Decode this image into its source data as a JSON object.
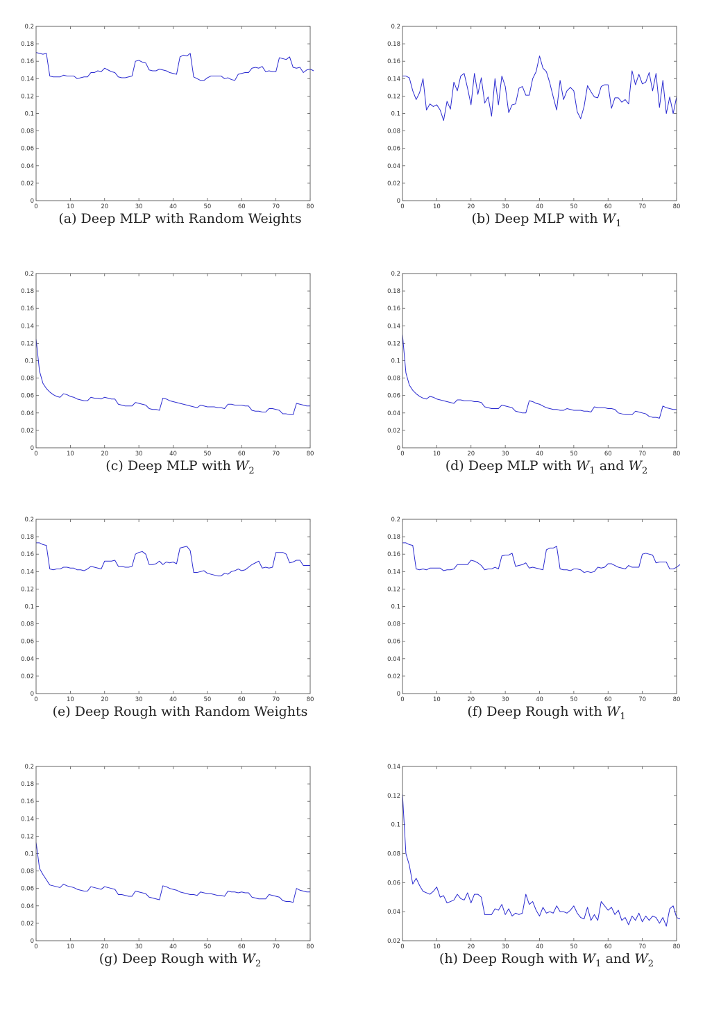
{
  "chart_data": [
    {
      "type": "line",
      "caption": {
        "tag": "(a)",
        "text": "Deep MLP with Random Weights",
        "sym": "",
        "sub": "",
        "text2": "",
        "sym2": "",
        "sub2": ""
      },
      "xlim": [
        0,
        80
      ],
      "ylim": [
        0,
        0.2
      ],
      "xticks": [
        0,
        10,
        20,
        30,
        40,
        50,
        60,
        70,
        80
      ],
      "yticks": [
        0,
        0.02,
        0.04,
        0.06,
        0.08,
        0.1,
        0.12,
        0.14,
        0.16,
        0.18,
        0.2
      ],
      "line_color": "#2b2bd0",
      "y": [
        0.17,
        0.169,
        0.168,
        0.169,
        0.143,
        0.142,
        0.142,
        0.142,
        0.144,
        0.143,
        0.143,
        0.143,
        0.14,
        0.141,
        0.142,
        0.142,
        0.147,
        0.147,
        0.149,
        0.148,
        0.152,
        0.15,
        0.148,
        0.147,
        0.142,
        0.141,
        0.141,
        0.142,
        0.143,
        0.16,
        0.161,
        0.159,
        0.158,
        0.15,
        0.149,
        0.149,
        0.151,
        0.15,
        0.149,
        0.147,
        0.146,
        0.145,
        0.165,
        0.167,
        0.166,
        0.169,
        0.142,
        0.14,
        0.138,
        0.138,
        0.141,
        0.143,
        0.143,
        0.143,
        0.143,
        0.14,
        0.141,
        0.139,
        0.138,
        0.145,
        0.146,
        0.147,
        0.147,
        0.152,
        0.153,
        0.152,
        0.154,
        0.148,
        0.149,
        0.148,
        0.148,
        0.164,
        0.163,
        0.162,
        0.165,
        0.153,
        0.152,
        0.153,
        0.147,
        0.15,
        0.151,
        0.149
      ]
    },
    {
      "type": "line",
      "caption": {
        "tag": "(b)",
        "text": "Deep MLP with",
        "sym": "W",
        "sub": "1",
        "text2": "",
        "sym2": "",
        "sub2": ""
      },
      "xlim": [
        0,
        80
      ],
      "ylim": [
        0,
        0.2
      ],
      "xticks": [
        0,
        10,
        20,
        30,
        40,
        50,
        60,
        70,
        80
      ],
      "yticks": [
        0,
        0.02,
        0.04,
        0.06,
        0.08,
        0.1,
        0.12,
        0.14,
        0.16,
        0.18,
        0.2
      ],
      "line_color": "#2b2bd0",
      "y": [
        0.143,
        0.143,
        0.141,
        0.126,
        0.116,
        0.124,
        0.14,
        0.104,
        0.111,
        0.108,
        0.11,
        0.104,
        0.092,
        0.114,
        0.105,
        0.136,
        0.126,
        0.143,
        0.146,
        0.129,
        0.11,
        0.146,
        0.122,
        0.141,
        0.112,
        0.119,
        0.097,
        0.14,
        0.11,
        0.143,
        0.131,
        0.101,
        0.11,
        0.111,
        0.129,
        0.131,
        0.121,
        0.121,
        0.14,
        0.148,
        0.166,
        0.152,
        0.148,
        0.135,
        0.119,
        0.104,
        0.138,
        0.116,
        0.126,
        0.13,
        0.126,
        0.102,
        0.094,
        0.108,
        0.132,
        0.125,
        0.119,
        0.118,
        0.131,
        0.133,
        0.133,
        0.106,
        0.118,
        0.118,
        0.113,
        0.116,
        0.111,
        0.149,
        0.133,
        0.145,
        0.134,
        0.136,
        0.147,
        0.126,
        0.146,
        0.107,
        0.138,
        0.1,
        0.119,
        0.1,
        0.119
      ]
    },
    {
      "type": "line",
      "caption": {
        "tag": "(c)",
        "text": "Deep MLP with",
        "sym": "W",
        "sub": "2",
        "text2": "",
        "sym2": "",
        "sub2": ""
      },
      "xlim": [
        0,
        80
      ],
      "ylim": [
        0,
        0.2
      ],
      "xticks": [
        0,
        10,
        20,
        30,
        40,
        50,
        60,
        70,
        80
      ],
      "yticks": [
        0,
        0.02,
        0.04,
        0.06,
        0.08,
        0.1,
        0.12,
        0.14,
        0.16,
        0.18,
        0.2
      ],
      "line_color": "#2b2bd0",
      "y": [
        0.125,
        0.088,
        0.074,
        0.068,
        0.064,
        0.061,
        0.059,
        0.058,
        0.062,
        0.061,
        0.059,
        0.058,
        0.056,
        0.055,
        0.054,
        0.054,
        0.058,
        0.057,
        0.057,
        0.056,
        0.058,
        0.057,
        0.056,
        0.056,
        0.05,
        0.049,
        0.048,
        0.048,
        0.048,
        0.052,
        0.051,
        0.05,
        0.049,
        0.045,
        0.044,
        0.044,
        0.043,
        0.057,
        0.056,
        0.054,
        0.053,
        0.052,
        0.051,
        0.05,
        0.049,
        0.048,
        0.047,
        0.046,
        0.049,
        0.048,
        0.047,
        0.047,
        0.047,
        0.046,
        0.046,
        0.045,
        0.05,
        0.05,
        0.049,
        0.049,
        0.049,
        0.048,
        0.048,
        0.043,
        0.042,
        0.042,
        0.041,
        0.041,
        0.045,
        0.045,
        0.044,
        0.043,
        0.039,
        0.039,
        0.038,
        0.038,
        0.051,
        0.05,
        0.049,
        0.048,
        0.048
      ]
    },
    {
      "type": "line",
      "caption": {
        "tag": "(d)",
        "text": "Deep MLP with",
        "sym": "W",
        "sub": "1",
        "text2": "and",
        "sym2": "W",
        "sub2": "2"
      },
      "xlim": [
        0,
        80
      ],
      "ylim": [
        0,
        0.2
      ],
      "xticks": [
        0,
        10,
        20,
        30,
        40,
        50,
        60,
        70,
        80
      ],
      "yticks": [
        0,
        0.02,
        0.04,
        0.06,
        0.08,
        0.1,
        0.12,
        0.14,
        0.16,
        0.18,
        0.2
      ],
      "line_color": "#2b2bd0",
      "y": [
        0.13,
        0.086,
        0.072,
        0.066,
        0.062,
        0.059,
        0.057,
        0.056,
        0.059,
        0.058,
        0.056,
        0.055,
        0.054,
        0.053,
        0.052,
        0.051,
        0.055,
        0.055,
        0.054,
        0.054,
        0.054,
        0.053,
        0.053,
        0.052,
        0.047,
        0.046,
        0.045,
        0.045,
        0.045,
        0.049,
        0.048,
        0.047,
        0.046,
        0.042,
        0.041,
        0.04,
        0.04,
        0.054,
        0.053,
        0.051,
        0.05,
        0.048,
        0.046,
        0.045,
        0.044,
        0.044,
        0.043,
        0.043,
        0.045,
        0.044,
        0.043,
        0.043,
        0.043,
        0.042,
        0.042,
        0.041,
        0.047,
        0.046,
        0.046,
        0.046,
        0.045,
        0.045,
        0.044,
        0.04,
        0.039,
        0.038,
        0.038,
        0.038,
        0.042,
        0.041,
        0.04,
        0.039,
        0.036,
        0.035,
        0.035,
        0.034,
        0.048,
        0.046,
        0.045,
        0.044,
        0.044
      ]
    },
    {
      "type": "line",
      "caption": {
        "tag": "(e)",
        "text": "Deep Rough with Random Weights",
        "sym": "",
        "sub": "",
        "text2": "",
        "sym2": "",
        "sub2": ""
      },
      "xlim": [
        0,
        80
      ],
      "ylim": [
        0,
        0.2
      ],
      "xticks": [
        0,
        10,
        20,
        30,
        40,
        50,
        60,
        70,
        80
      ],
      "yticks": [
        0,
        0.02,
        0.04,
        0.06,
        0.08,
        0.1,
        0.12,
        0.14,
        0.16,
        0.18,
        0.2
      ],
      "line_color": "#2b2bd0",
      "y": [
        0.173,
        0.173,
        0.171,
        0.17,
        0.143,
        0.142,
        0.143,
        0.143,
        0.145,
        0.145,
        0.144,
        0.144,
        0.142,
        0.142,
        0.141,
        0.143,
        0.146,
        0.145,
        0.144,
        0.143,
        0.152,
        0.152,
        0.152,
        0.153,
        0.146,
        0.146,
        0.145,
        0.145,
        0.146,
        0.16,
        0.162,
        0.163,
        0.16,
        0.148,
        0.148,
        0.149,
        0.152,
        0.148,
        0.151,
        0.15,
        0.151,
        0.149,
        0.167,
        0.168,
        0.169,
        0.164,
        0.139,
        0.139,
        0.14,
        0.141,
        0.138,
        0.137,
        0.136,
        0.135,
        0.135,
        0.138,
        0.137,
        0.14,
        0.141,
        0.143,
        0.141,
        0.142,
        0.145,
        0.148,
        0.15,
        0.152,
        0.144,
        0.145,
        0.144,
        0.145,
        0.162,
        0.162,
        0.162,
        0.16,
        0.15,
        0.151,
        0.153,
        0.153,
        0.147,
        0.147,
        0.147
      ]
    },
    {
      "type": "line",
      "caption": {
        "tag": "(f)",
        "text": "Deep Rough with",
        "sym": "W",
        "sub": "1",
        "text2": "",
        "sym2": "",
        "sub2": ""
      },
      "xlim": [
        0,
        80
      ],
      "ylim": [
        0,
        0.2
      ],
      "xticks": [
        0,
        10,
        20,
        30,
        40,
        50,
        60,
        70,
        80
      ],
      "yticks": [
        0,
        0.02,
        0.04,
        0.06,
        0.08,
        0.1,
        0.12,
        0.14,
        0.16,
        0.18,
        0.2
      ],
      "line_color": "#2b2bd0",
      "y": [
        0.173,
        0.173,
        0.171,
        0.17,
        0.143,
        0.142,
        0.143,
        0.142,
        0.144,
        0.144,
        0.144,
        0.144,
        0.141,
        0.142,
        0.142,
        0.143,
        0.148,
        0.148,
        0.148,
        0.148,
        0.153,
        0.152,
        0.15,
        0.147,
        0.142,
        0.143,
        0.143,
        0.145,
        0.143,
        0.158,
        0.159,
        0.159,
        0.161,
        0.146,
        0.147,
        0.148,
        0.15,
        0.144,
        0.145,
        0.144,
        0.143,
        0.142,
        0.165,
        0.167,
        0.167,
        0.169,
        0.143,
        0.142,
        0.142,
        0.141,
        0.143,
        0.143,
        0.142,
        0.139,
        0.14,
        0.139,
        0.14,
        0.145,
        0.144,
        0.145,
        0.149,
        0.149,
        0.147,
        0.145,
        0.144,
        0.143,
        0.147,
        0.145,
        0.145,
        0.145,
        0.16,
        0.161,
        0.16,
        0.159,
        0.15,
        0.151,
        0.151,
        0.151,
        0.143,
        0.143,
        0.145,
        0.148
      ]
    },
    {
      "type": "line",
      "caption": {
        "tag": "(g)",
        "text": "Deep Rough with",
        "sym": "W",
        "sub": "2",
        "text2": "",
        "sym2": "",
        "sub2": ""
      },
      "xlim": [
        0,
        80
      ],
      "ylim": [
        0,
        0.2
      ],
      "xticks": [
        0,
        10,
        20,
        30,
        40,
        50,
        60,
        70,
        80
      ],
      "yticks": [
        0,
        0.02,
        0.04,
        0.06,
        0.08,
        0.1,
        0.12,
        0.14,
        0.16,
        0.18,
        0.2
      ],
      "line_color": "#2b2bd0",
      "y": [
        0.113,
        0.083,
        0.076,
        0.07,
        0.064,
        0.063,
        0.062,
        0.061,
        0.065,
        0.063,
        0.062,
        0.061,
        0.059,
        0.058,
        0.057,
        0.057,
        0.062,
        0.061,
        0.06,
        0.059,
        0.062,
        0.061,
        0.06,
        0.059,
        0.053,
        0.053,
        0.052,
        0.051,
        0.051,
        0.057,
        0.056,
        0.055,
        0.054,
        0.05,
        0.049,
        0.048,
        0.047,
        0.063,
        0.062,
        0.06,
        0.059,
        0.058,
        0.056,
        0.055,
        0.054,
        0.053,
        0.053,
        0.052,
        0.056,
        0.055,
        0.054,
        0.054,
        0.053,
        0.052,
        0.052,
        0.051,
        0.057,
        0.056,
        0.056,
        0.055,
        0.056,
        0.055,
        0.055,
        0.05,
        0.049,
        0.048,
        0.048,
        0.048,
        0.053,
        0.052,
        0.051,
        0.05,
        0.046,
        0.045,
        0.045,
        0.044,
        0.06,
        0.058,
        0.057,
        0.056,
        0.056
      ]
    },
    {
      "type": "line",
      "caption": {
        "tag": "(h)",
        "text": "Deep Rough with",
        "sym": "W",
        "sub": "1",
        "text2": "and",
        "sym2": "W",
        "sub2": "2"
      },
      "xlim": [
        0,
        80
      ],
      "ylim": [
        0.02,
        0.14
      ],
      "xticks": [
        0,
        10,
        20,
        30,
        40,
        50,
        60,
        70,
        80
      ],
      "yticks": [
        0.02,
        0.04,
        0.06,
        0.08,
        0.1,
        0.12,
        0.14
      ],
      "line_color": "#2b2bd0",
      "y": [
        0.121,
        0.08,
        0.072,
        0.059,
        0.063,
        0.058,
        0.054,
        0.053,
        0.052,
        0.054,
        0.057,
        0.05,
        0.051,
        0.046,
        0.047,
        0.048,
        0.052,
        0.049,
        0.048,
        0.053,
        0.046,
        0.052,
        0.052,
        0.05,
        0.038,
        0.038,
        0.038,
        0.042,
        0.041,
        0.045,
        0.038,
        0.042,
        0.037,
        0.039,
        0.038,
        0.039,
        0.052,
        0.045,
        0.047,
        0.041,
        0.037,
        0.043,
        0.039,
        0.04,
        0.039,
        0.044,
        0.04,
        0.04,
        0.039,
        0.041,
        0.044,
        0.039,
        0.036,
        0.035,
        0.043,
        0.034,
        0.038,
        0.034,
        0.047,
        0.044,
        0.041,
        0.043,
        0.038,
        0.041,
        0.034,
        0.036,
        0.031,
        0.037,
        0.034,
        0.039,
        0.033,
        0.037,
        0.034,
        0.037,
        0.036,
        0.032,
        0.036,
        0.03,
        0.042,
        0.044,
        0.036,
        0.035
      ]
    }
  ]
}
